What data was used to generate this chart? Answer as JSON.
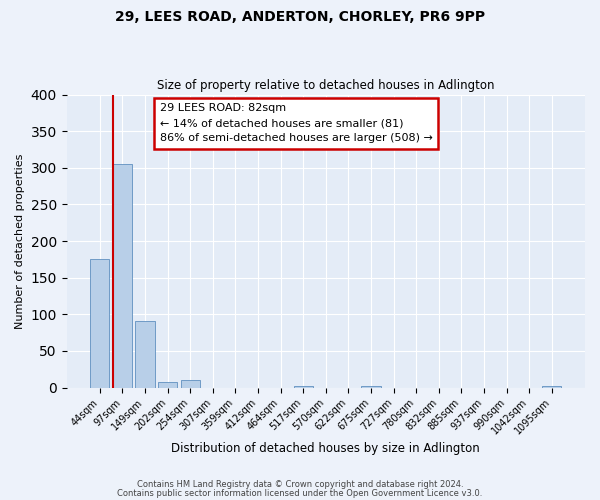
{
  "title": "29, LEES ROAD, ANDERTON, CHORLEY, PR6 9PP",
  "subtitle": "Size of property relative to detached houses in Adlington",
  "xlabel": "Distribution of detached houses by size in Adlington",
  "ylabel": "Number of detached properties",
  "bin_labels": [
    "44sqm",
    "97sqm",
    "149sqm",
    "202sqm",
    "254sqm",
    "307sqm",
    "359sqm",
    "412sqm",
    "464sqm",
    "517sqm",
    "570sqm",
    "622sqm",
    "675sqm",
    "727sqm",
    "780sqm",
    "832sqm",
    "885sqm",
    "937sqm",
    "990sqm",
    "1042sqm",
    "1095sqm"
  ],
  "bar_heights": [
    176,
    305,
    91,
    8,
    10,
    0,
    0,
    0,
    0,
    2,
    0,
    0,
    2,
    0,
    0,
    0,
    0,
    0,
    0,
    0,
    2
  ],
  "bar_color": "#b8cfe8",
  "bar_edge_color": "#6090c0",
  "ylim": [
    0,
    400
  ],
  "yticks": [
    0,
    50,
    100,
    150,
    200,
    250,
    300,
    350,
    400
  ],
  "property_label": "29 LEES ROAD: 82sqm",
  "annotation_line1": "← 14% of detached houses are smaller (81)",
  "annotation_line2": "86% of semi-detached houses are larger (508) →",
  "vline_bin_index": 1,
  "box_color": "#cc0000",
  "footer_line1": "Contains HM Land Registry data © Crown copyright and database right 2024.",
  "footer_line2": "Contains public sector information licensed under the Open Government Licence v3.0.",
  "background_color": "#edf2fa",
  "plot_bg_color": "#e4ecf7"
}
